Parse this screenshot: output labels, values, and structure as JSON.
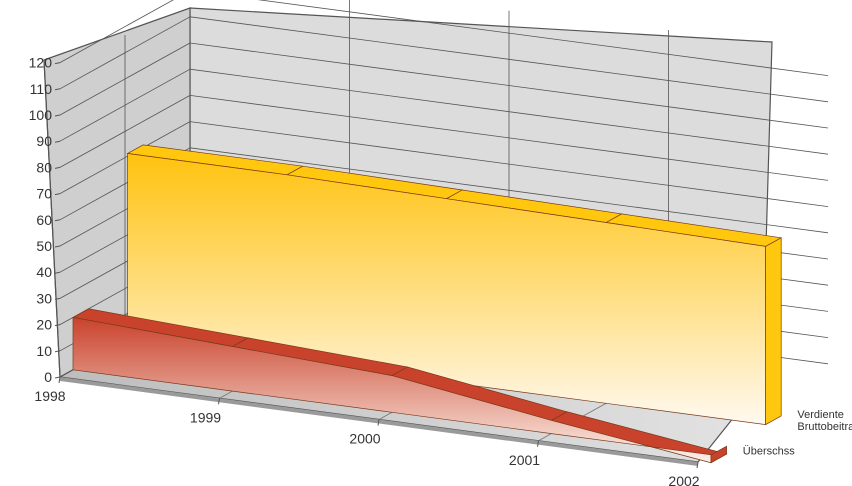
{
  "chart_data": {
    "type": "area",
    "view": "3d",
    "categories": [
      "1998",
      "1999",
      "2000",
      "2001",
      "2002"
    ],
    "y_ticks": [
      "0",
      "10",
      "20",
      "30",
      "40",
      "50",
      "60",
      "70",
      "80",
      "90",
      "100",
      "110",
      "120"
    ],
    "ylim": [
      0,
      120
    ],
    "grid": true,
    "series": [
      {
        "name": "Überschss",
        "values": [
          20,
          17,
          14,
          5,
          -3
        ],
        "color_top": "#c9422c",
        "color_front_top": "#c9422c",
        "color_front_bottom": "#fdf2ea"
      },
      {
        "name": "Verdiente Bruttobeitrage",
        "values": [
          71,
          71,
          70,
          69,
          68
        ],
        "color_top": "#ffc70d",
        "color_front_top": "#ffc20e",
        "color_front_bottom": "#fff9f0"
      }
    ]
  },
  "legend": {
    "series_labels": [
      [
        "Überschss"
      ],
      [
        "Verdiente",
        "Bruttobeitrage"
      ]
    ]
  }
}
